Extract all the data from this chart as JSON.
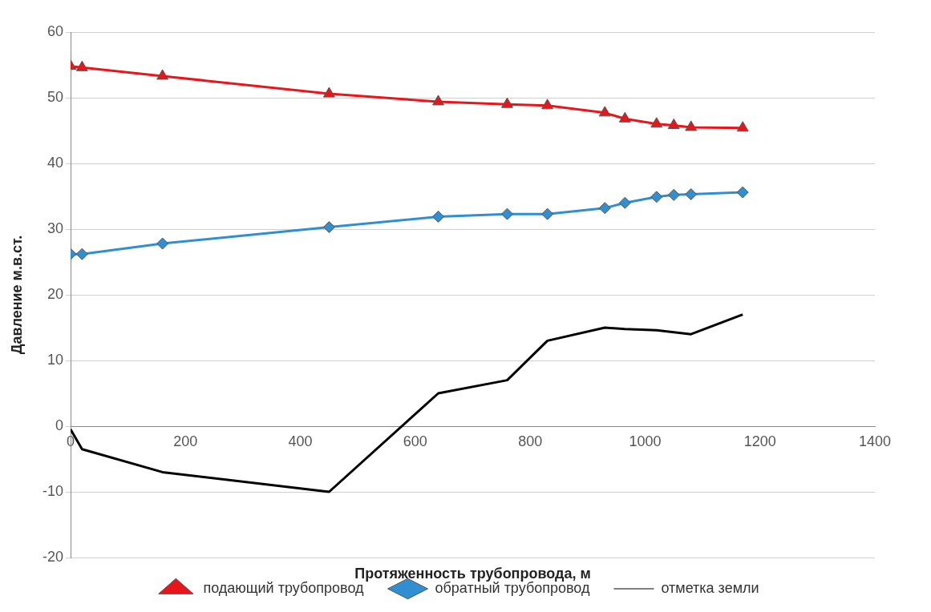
{
  "chart_data": {
    "type": "line",
    "xlabel": "Протяженность трубопровода, м",
    "ylabel": "Давление м.в.ст.",
    "x": [
      0,
      20,
      160,
      450,
      640,
      760,
      830,
      930,
      965,
      1020,
      1050,
      1080,
      1170
    ],
    "xlim": [
      0,
      1400
    ],
    "xticks": [
      0,
      200,
      400,
      600,
      800,
      1000,
      1200,
      1400
    ],
    "ylim": [
      -20,
      60
    ],
    "yticks": [
      -20,
      -10,
      0,
      10,
      20,
      30,
      40,
      50,
      60
    ],
    "grid": "y",
    "legend": "bottom",
    "line_style": "solid",
    "series": [
      {
        "name": "подающий трубопровод",
        "color": "#e8161b",
        "marker": "triangle",
        "values": [
          54.8,
          54.6,
          53.3,
          50.6,
          49.4,
          49.0,
          48.8,
          47.7,
          46.8,
          46.0,
          45.8,
          45.5,
          45.4
        ]
      },
      {
        "name": "обратный трубопровод",
        "color": "#2f8fd0",
        "marker": "diamond",
        "values": [
          26.2,
          26.2,
          27.8,
          30.3,
          31.9,
          32.3,
          32.3,
          33.2,
          34.0,
          34.9,
          35.2,
          35.3,
          35.6
        ]
      },
      {
        "name": "отметка земли",
        "color": "#000000",
        "marker": "none",
        "values": [
          -0.5,
          -3.5,
          -7,
          -10,
          5,
          7,
          13,
          15,
          14.8,
          14.6,
          14.3,
          14,
          17
        ]
      }
    ]
  }
}
